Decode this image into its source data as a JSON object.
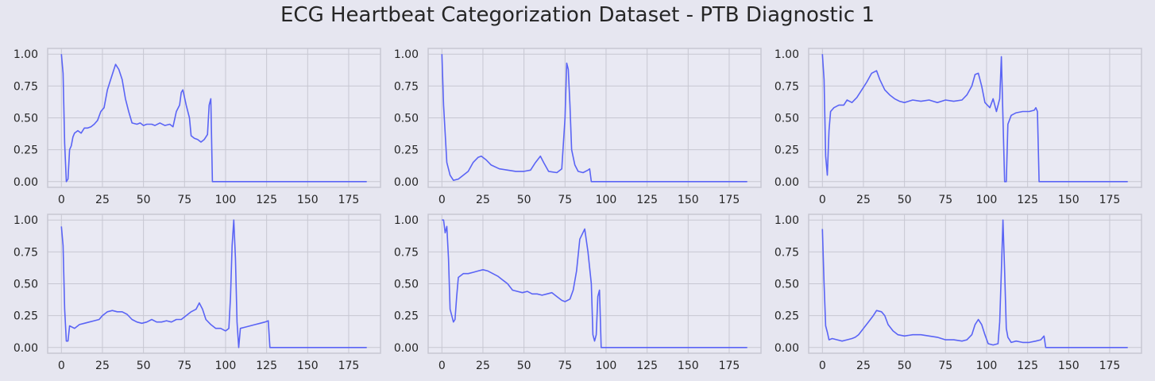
{
  "title": "ECG Heartbeat Categorization Dataset - PTB Diagnostic 1",
  "colors": {
    "background": "#e6e6f0",
    "panel": "#e9e9f3",
    "grid": "#c7c7d2",
    "line": "#5a64f5",
    "text": "#262626"
  },
  "chart_data": [
    {
      "type": "line",
      "xlim": [
        0,
        186
      ],
      "ylim": [
        0,
        1
      ],
      "grid": true,
      "xticks": [
        "0",
        "25",
        "50",
        "75",
        "100",
        "125",
        "150",
        "175"
      ],
      "yticks": [
        "0.00",
        "0.25",
        "0.50",
        "0.75",
        "1.00"
      ],
      "points": [
        [
          0,
          1.0
        ],
        [
          1,
          0.85
        ],
        [
          2,
          0.3
        ],
        [
          3,
          0.0
        ],
        [
          4,
          0.02
        ],
        [
          5,
          0.25
        ],
        [
          6,
          0.28
        ],
        [
          7,
          0.35
        ],
        [
          8,
          0.38
        ],
        [
          10,
          0.4
        ],
        [
          12,
          0.38
        ],
        [
          14,
          0.42
        ],
        [
          16,
          0.42
        ],
        [
          18,
          0.43
        ],
        [
          20,
          0.45
        ],
        [
          22,
          0.48
        ],
        [
          24,
          0.55
        ],
        [
          26,
          0.58
        ],
        [
          28,
          0.72
        ],
        [
          30,
          0.8
        ],
        [
          32,
          0.88
        ],
        [
          33,
          0.92
        ],
        [
          35,
          0.88
        ],
        [
          37,
          0.8
        ],
        [
          39,
          0.65
        ],
        [
          41,
          0.55
        ],
        [
          43,
          0.46
        ],
        [
          46,
          0.45
        ],
        [
          48,
          0.46
        ],
        [
          50,
          0.44
        ],
        [
          52,
          0.45
        ],
        [
          55,
          0.45
        ],
        [
          57,
          0.44
        ],
        [
          60,
          0.46
        ],
        [
          63,
          0.44
        ],
        [
          66,
          0.45
        ],
        [
          68,
          0.43
        ],
        [
          70,
          0.55
        ],
        [
          72,
          0.6
        ],
        [
          73,
          0.7
        ],
        [
          74,
          0.72
        ],
        [
          76,
          0.6
        ],
        [
          78,
          0.5
        ],
        [
          79,
          0.36
        ],
        [
          81,
          0.34
        ],
        [
          83,
          0.33
        ],
        [
          85,
          0.31
        ],
        [
          87,
          0.33
        ],
        [
          89,
          0.37
        ],
        [
          90,
          0.6
        ],
        [
          91,
          0.65
        ],
        [
          92,
          0.0
        ],
        [
          186,
          0.0
        ]
      ]
    },
    {
      "type": "line",
      "xlim": [
        0,
        186
      ],
      "ylim": [
        0,
        1
      ],
      "grid": true,
      "xticks": [
        "0",
        "25",
        "50",
        "75",
        "100",
        "125",
        "150",
        "175"
      ],
      "yticks": [
        "0.00",
        "0.25",
        "0.50",
        "0.75",
        "1.00"
      ],
      "points": [
        [
          0,
          1.0
        ],
        [
          1,
          0.6
        ],
        [
          3,
          0.15
        ],
        [
          5,
          0.05
        ],
        [
          7,
          0.01
        ],
        [
          10,
          0.02
        ],
        [
          13,
          0.05
        ],
        [
          16,
          0.08
        ],
        [
          19,
          0.15
        ],
        [
          22,
          0.19
        ],
        [
          24,
          0.2
        ],
        [
          27,
          0.17
        ],
        [
          30,
          0.13
        ],
        [
          35,
          0.1
        ],
        [
          40,
          0.09
        ],
        [
          45,
          0.08
        ],
        [
          50,
          0.08
        ],
        [
          54,
          0.09
        ],
        [
          57,
          0.15
        ],
        [
          60,
          0.2
        ],
        [
          62,
          0.15
        ],
        [
          65,
          0.08
        ],
        [
          70,
          0.07
        ],
        [
          73,
          0.1
        ],
        [
          75,
          0.5
        ],
        [
          76,
          0.93
        ],
        [
          77,
          0.88
        ],
        [
          78,
          0.6
        ],
        [
          79,
          0.25
        ],
        [
          81,
          0.13
        ],
        [
          83,
          0.08
        ],
        [
          86,
          0.07
        ],
        [
          89,
          0.09
        ],
        [
          90,
          0.1
        ],
        [
          91,
          0.0
        ],
        [
          186,
          0.0
        ]
      ]
    },
    {
      "type": "line",
      "xlim": [
        0,
        186
      ],
      "ylim": [
        0,
        1
      ],
      "grid": true,
      "xticks": [
        "0",
        "25",
        "50",
        "75",
        "100",
        "125",
        "150",
        "175"
      ],
      "yticks": [
        "0.00",
        "0.25",
        "0.50",
        "0.75",
        "1.00"
      ],
      "points": [
        [
          0,
          1.0
        ],
        [
          1,
          0.8
        ],
        [
          2,
          0.2
        ],
        [
          3,
          0.05
        ],
        [
          4,
          0.4
        ],
        [
          5,
          0.55
        ],
        [
          7,
          0.58
        ],
        [
          10,
          0.6
        ],
        [
          13,
          0.6
        ],
        [
          15,
          0.64
        ],
        [
          18,
          0.62
        ],
        [
          21,
          0.66
        ],
        [
          24,
          0.72
        ],
        [
          27,
          0.78
        ],
        [
          30,
          0.85
        ],
        [
          33,
          0.87
        ],
        [
          35,
          0.8
        ],
        [
          38,
          0.72
        ],
        [
          41,
          0.68
        ],
        [
          44,
          0.65
        ],
        [
          47,
          0.63
        ],
        [
          50,
          0.62
        ],
        [
          55,
          0.64
        ],
        [
          60,
          0.63
        ],
        [
          65,
          0.64
        ],
        [
          70,
          0.62
        ],
        [
          75,
          0.64
        ],
        [
          80,
          0.63
        ],
        [
          85,
          0.64
        ],
        [
          88,
          0.68
        ],
        [
          91,
          0.75
        ],
        [
          93,
          0.84
        ],
        [
          95,
          0.85
        ],
        [
          97,
          0.75
        ],
        [
          99,
          0.62
        ],
        [
          102,
          0.58
        ],
        [
          104,
          0.65
        ],
        [
          106,
          0.55
        ],
        [
          108,
          0.65
        ],
        [
          109,
          0.98
        ],
        [
          110,
          0.5
        ],
        [
          111,
          0.0
        ],
        [
          112,
          0.0
        ],
        [
          113,
          0.45
        ],
        [
          115,
          0.52
        ],
        [
          118,
          0.54
        ],
        [
          122,
          0.55
        ],
        [
          126,
          0.55
        ],
        [
          129,
          0.56
        ],
        [
          130,
          0.58
        ],
        [
          131,
          0.55
        ],
        [
          132,
          0.0
        ],
        [
          186,
          0.0
        ]
      ]
    },
    {
      "type": "line",
      "xlim": [
        0,
        186
      ],
      "ylim": [
        0,
        1
      ],
      "grid": true,
      "xticks": [
        "0",
        "25",
        "50",
        "75",
        "100",
        "125",
        "150",
        "175"
      ],
      "yticks": [
        "0.00",
        "0.25",
        "0.50",
        "0.75",
        "1.00"
      ],
      "points": [
        [
          0,
          0.95
        ],
        [
          1,
          0.8
        ],
        [
          2,
          0.3
        ],
        [
          3,
          0.05
        ],
        [
          4,
          0.05
        ],
        [
          5,
          0.17
        ],
        [
          8,
          0.15
        ],
        [
          11,
          0.18
        ],
        [
          14,
          0.19
        ],
        [
          17,
          0.2
        ],
        [
          20,
          0.21
        ],
        [
          23,
          0.22
        ],
        [
          25,
          0.25
        ],
        [
          28,
          0.28
        ],
        [
          31,
          0.29
        ],
        [
          34,
          0.28
        ],
        [
          37,
          0.28
        ],
        [
          40,
          0.26
        ],
        [
          43,
          0.22
        ],
        [
          46,
          0.2
        ],
        [
          49,
          0.19
        ],
        [
          52,
          0.2
        ],
        [
          55,
          0.22
        ],
        [
          58,
          0.2
        ],
        [
          61,
          0.2
        ],
        [
          64,
          0.21
        ],
        [
          67,
          0.2
        ],
        [
          70,
          0.22
        ],
        [
          73,
          0.22
        ],
        [
          76,
          0.25
        ],
        [
          79,
          0.28
        ],
        [
          82,
          0.3
        ],
        [
          84,
          0.35
        ],
        [
          86,
          0.3
        ],
        [
          88,
          0.22
        ],
        [
          91,
          0.18
        ],
        [
          94,
          0.15
        ],
        [
          97,
          0.15
        ],
        [
          100,
          0.13
        ],
        [
          102,
          0.15
        ],
        [
          103,
          0.4
        ],
        [
          104,
          0.8
        ],
        [
          105,
          1.0
        ],
        [
          106,
          0.7
        ],
        [
          107,
          0.2
        ],
        [
          108,
          0.0
        ],
        [
          109,
          0.15
        ],
        [
          112,
          0.16
        ],
        [
          115,
          0.17
        ],
        [
          118,
          0.18
        ],
        [
          121,
          0.19
        ],
        [
          124,
          0.2
        ],
        [
          126,
          0.21
        ],
        [
          127,
          0.0
        ],
        [
          186,
          0.0
        ]
      ]
    },
    {
      "type": "line",
      "xlim": [
        0,
        186
      ],
      "ylim": [
        0,
        1
      ],
      "grid": true,
      "xticks": [
        "0",
        "25",
        "50",
        "75",
        "100",
        "125",
        "150",
        "175"
      ],
      "yticks": [
        "0.00",
        "0.25",
        "0.50",
        "0.75",
        "1.00"
      ],
      "points": [
        [
          0,
          1.0
        ],
        [
          1,
          1.0
        ],
        [
          2,
          0.9
        ],
        [
          3,
          0.95
        ],
        [
          4,
          0.7
        ],
        [
          5,
          0.3
        ],
        [
          6,
          0.25
        ],
        [
          7,
          0.2
        ],
        [
          8,
          0.22
        ],
        [
          9,
          0.4
        ],
        [
          10,
          0.55
        ],
        [
          13,
          0.58
        ],
        [
          16,
          0.58
        ],
        [
          19,
          0.59
        ],
        [
          22,
          0.6
        ],
        [
          25,
          0.61
        ],
        [
          28,
          0.6
        ],
        [
          31,
          0.58
        ],
        [
          34,
          0.56
        ],
        [
          37,
          0.53
        ],
        [
          40,
          0.5
        ],
        [
          43,
          0.45
        ],
        [
          46,
          0.44
        ],
        [
          49,
          0.43
        ],
        [
          52,
          0.44
        ],
        [
          55,
          0.42
        ],
        [
          58,
          0.42
        ],
        [
          61,
          0.41
        ],
        [
          64,
          0.42
        ],
        [
          67,
          0.43
        ],
        [
          70,
          0.4
        ],
        [
          73,
          0.37
        ],
        [
          75,
          0.36
        ],
        [
          78,
          0.38
        ],
        [
          80,
          0.45
        ],
        [
          82,
          0.6
        ],
        [
          84,
          0.85
        ],
        [
          87,
          0.93
        ],
        [
          89,
          0.75
        ],
        [
          91,
          0.5
        ],
        [
          92,
          0.1
        ],
        [
          93,
          0.05
        ],
        [
          94,
          0.1
        ],
        [
          95,
          0.4
        ],
        [
          96,
          0.45
        ],
        [
          97,
          0.0
        ],
        [
          186,
          0.0
        ]
      ]
    },
    {
      "type": "line",
      "xlim": [
        0,
        186
      ],
      "ylim": [
        0,
        1
      ],
      "grid": true,
      "xticks": [
        "0",
        "25",
        "50",
        "75",
        "100",
        "125",
        "150",
        "175"
      ],
      "yticks": [
        "0.00",
        "0.25",
        "0.50",
        "0.75",
        "1.00"
      ],
      "points": [
        [
          0,
          0.93
        ],
        [
          1,
          0.5
        ],
        [
          2,
          0.17
        ],
        [
          3,
          0.12
        ],
        [
          4,
          0.06
        ],
        [
          6,
          0.07
        ],
        [
          9,
          0.06
        ],
        [
          12,
          0.05
        ],
        [
          15,
          0.06
        ],
        [
          18,
          0.07
        ],
        [
          20,
          0.08
        ],
        [
          22,
          0.1
        ],
        [
          25,
          0.15
        ],
        [
          28,
          0.2
        ],
        [
          31,
          0.25
        ],
        [
          33,
          0.29
        ],
        [
          36,
          0.28
        ],
        [
          38,
          0.25
        ],
        [
          40,
          0.18
        ],
        [
          43,
          0.13
        ],
        [
          46,
          0.1
        ],
        [
          50,
          0.09
        ],
        [
          55,
          0.1
        ],
        [
          60,
          0.1
        ],
        [
          65,
          0.09
        ],
        [
          70,
          0.08
        ],
        [
          75,
          0.06
        ],
        [
          80,
          0.06
        ],
        [
          85,
          0.05
        ],
        [
          88,
          0.06
        ],
        [
          91,
          0.1
        ],
        [
          93,
          0.18
        ],
        [
          95,
          0.22
        ],
        [
          97,
          0.18
        ],
        [
          99,
          0.1
        ],
        [
          101,
          0.03
        ],
        [
          104,
          0.02
        ],
        [
          107,
          0.03
        ],
        [
          108,
          0.2
        ],
        [
          109,
          0.6
        ],
        [
          110,
          1.0
        ],
        [
          111,
          0.6
        ],
        [
          112,
          0.15
        ],
        [
          113,
          0.08
        ],
        [
          115,
          0.04
        ],
        [
          118,
          0.05
        ],
        [
          122,
          0.04
        ],
        [
          126,
          0.04
        ],
        [
          130,
          0.05
        ],
        [
          133,
          0.06
        ],
        [
          135,
          0.09
        ],
        [
          136,
          0.0
        ],
        [
          186,
          0.0
        ]
      ]
    }
  ]
}
